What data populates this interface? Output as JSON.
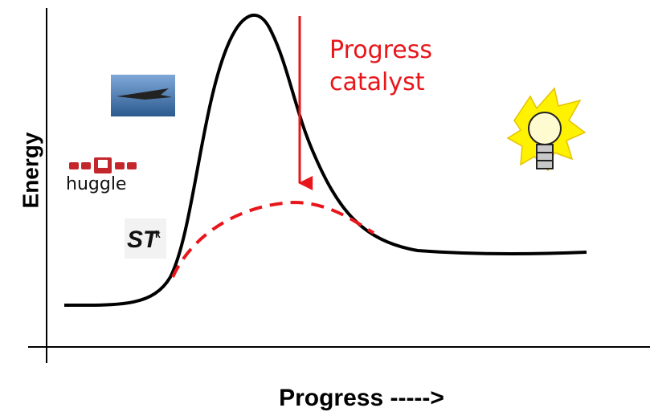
{
  "axes": {
    "x_label": "Progress ----->",
    "y_label": "Energy"
  },
  "annotation": {
    "lines": [
      "Progress",
      "catalyst"
    ]
  },
  "icons": {
    "huggle_label": "huggle",
    "logo_text": "ST",
    "logo_sub": "k"
  }
}
